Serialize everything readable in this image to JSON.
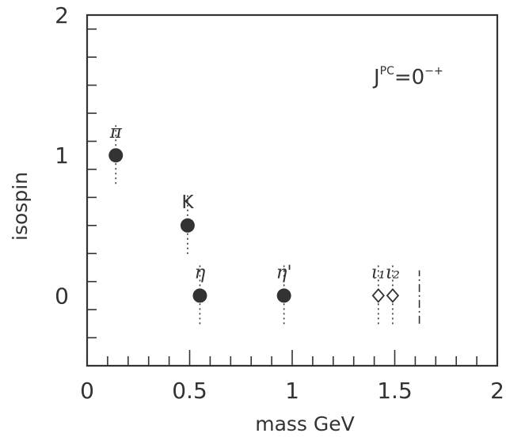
{
  "chart_data": {
    "type": "scatter",
    "xlabel": "mass GeV",
    "ylabel": "isospin",
    "xlim": [
      0,
      2
    ],
    "ylim": [
      -0.5,
      2
    ],
    "x_ticks": [
      "0",
      "0.5",
      "1",
      "1.5",
      "2"
    ],
    "y_ticks": [
      "0",
      "1",
      "2"
    ],
    "annotation": {
      "base": "J",
      "sup": "PC",
      "eq": "=0",
      "sup2": "−+"
    },
    "points": [
      {
        "label": "π",
        "x": 0.14,
        "y": 1,
        "marker": "filled-circle",
        "italic": true
      },
      {
        "label": "K",
        "x": 0.49,
        "y": 0.5,
        "marker": "filled-circle",
        "italic": false
      },
      {
        "label": "η",
        "x": 0.55,
        "y": 0,
        "marker": "filled-circle",
        "italic": true
      },
      {
        "label": "η'",
        "x": 0.96,
        "y": 0,
        "marker": "filled-circle",
        "italic": true
      },
      {
        "label": "ι₁",
        "x": 1.42,
        "y": 0,
        "marker": "open-diamond",
        "italic": true
      },
      {
        "label": "ι₂",
        "x": 1.49,
        "y": 0,
        "marker": "open-diamond",
        "italic": true
      }
    ],
    "reference_lines": [
      {
        "x": 1.62,
        "y_from": -0.2,
        "y_to": 0.18,
        "style": "dash-dot"
      }
    ],
    "grid": false,
    "legend": "none"
  }
}
